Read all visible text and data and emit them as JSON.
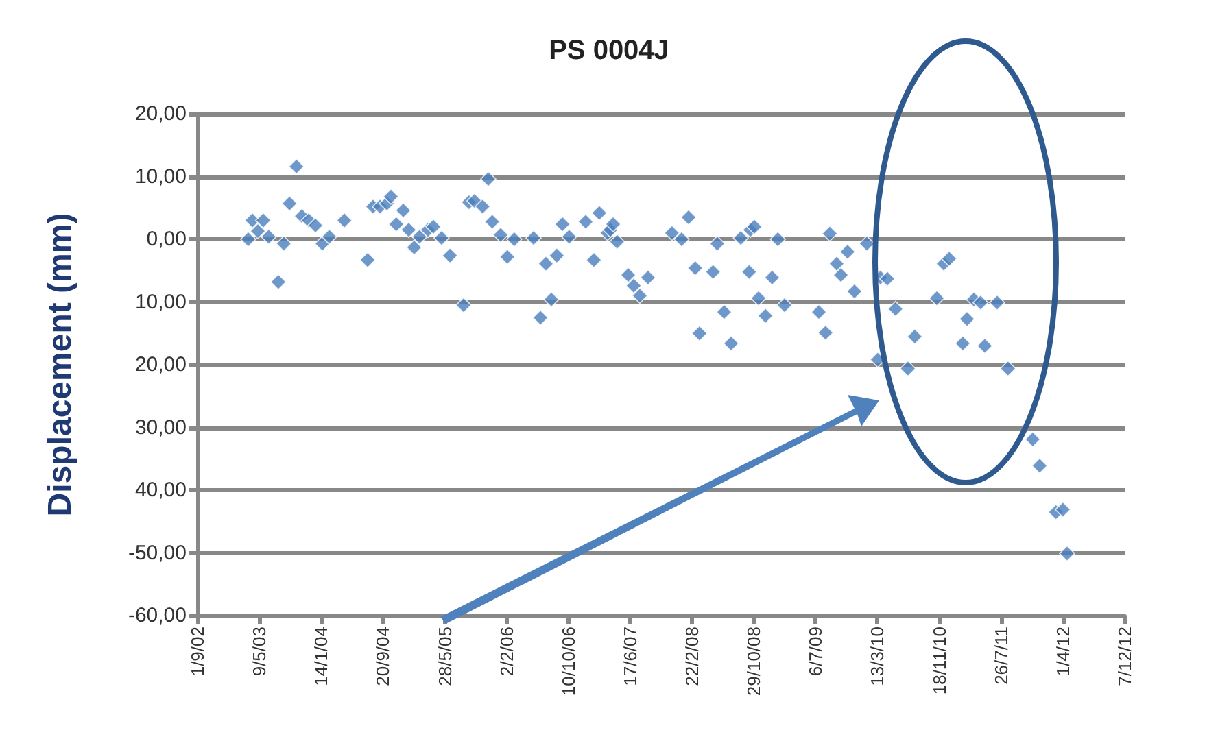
{
  "chart_data": {
    "type": "scatter",
    "title": "PS 0004J",
    "ylabel": "Displacement (mm)",
    "marker": "diamond",
    "grid": "y",
    "xlim": [
      "2002-09-01",
      "2012-12-07"
    ],
    "xticks": [
      {
        "value": "2002-09-01",
        "label": "1/9/02"
      },
      {
        "value": "2003-05-09",
        "label": "9/5/03"
      },
      {
        "value": "2004-01-14",
        "label": "14/1/04"
      },
      {
        "value": "2004-09-20",
        "label": "20/9/04"
      },
      {
        "value": "2005-05-28",
        "label": "28/5/05"
      },
      {
        "value": "2006-02-02",
        "label": "2/2/06"
      },
      {
        "value": "2006-10-10",
        "label": "10/10/06"
      },
      {
        "value": "2007-06-17",
        "label": "17/6/07"
      },
      {
        "value": "2008-02-22",
        "label": "22/2/08"
      },
      {
        "value": "2008-10-29",
        "label": "29/10/08"
      },
      {
        "value": "2009-07-06",
        "label": "6/7/09"
      },
      {
        "value": "2010-03-13",
        "label": "13/3/10"
      },
      {
        "value": "2010-11-18",
        "label": "18/11/10"
      },
      {
        "value": "2011-07-26",
        "label": "26/7/11"
      },
      {
        "value": "2012-04-01",
        "label": "1/4/12"
      },
      {
        "value": "2012-12-07",
        "label": "7/12/12"
      }
    ],
    "ylim": [
      -60,
      20
    ],
    "yticks": [
      {
        "value": 20,
        "label": "20,00"
      },
      {
        "value": 10,
        "label": "10,00"
      },
      {
        "value": 0,
        "label": "0,00"
      },
      {
        "value": -10,
        "label": "10,00"
      },
      {
        "value": -20,
        "label": "20,00"
      },
      {
        "value": -30,
        "label": "30,00"
      },
      {
        "value": -40,
        "label": "40,00"
      },
      {
        "value": -50,
        "label": "-50,00"
      },
      {
        "value": -60,
        "label": "-60,00"
      }
    ],
    "series": [
      {
        "color": "#4a7ebb",
        "x": [
          "2003-03-25",
          "2003-04-11",
          "2003-05-03",
          "2003-05-25",
          "2003-06-16",
          "2003-07-25",
          "2003-08-16",
          "2003-09-08",
          "2003-10-06",
          "2003-10-28",
          "2003-11-25",
          "2003-12-22",
          "2004-01-19",
          "2004-02-16",
          "2004-04-17",
          "2004-07-20",
          "2004-08-11",
          "2004-09-08",
          "2004-10-06",
          "2004-10-22",
          "2004-11-13",
          "2004-12-11",
          "2005-01-02",
          "2005-01-24",
          "2005-02-15",
          "2005-03-21",
          "2005-04-12",
          "2005-05-15",
          "2005-06-18",
          "2005-08-12",
          "2005-09-03",
          "2005-09-25",
          "2005-10-28",
          "2005-11-20",
          "2005-12-06",
          "2006-01-09",
          "2006-02-05",
          "2006-03-05",
          "2006-05-22",
          "2006-06-19",
          "2006-07-11",
          "2006-08-02",
          "2006-08-24",
          "2006-09-16",
          "2006-10-13",
          "2006-12-19",
          "2007-01-21",
          "2007-02-12",
          "2007-03-17",
          "2007-03-29",
          "2007-04-09",
          "2007-04-25",
          "2007-06-09",
          "2007-07-01",
          "2007-07-26",
          "2007-08-28",
          "2007-12-03",
          "2008-01-11",
          "2008-02-08",
          "2008-03-06",
          "2008-03-23",
          "2008-05-17",
          "2008-06-03",
          "2008-07-01",
          "2008-07-29",
          "2008-09-06",
          "2008-10-10",
          "2008-10-15",
          "2008-10-31",
          "2008-11-17",
          "2008-12-15",
          "2009-01-11",
          "2009-02-03",
          "2009-03-02",
          "2009-07-19",
          "2009-08-15",
          "2009-09-01",
          "2009-09-29",
          "2009-10-16",
          "2009-11-12",
          "2009-12-10",
          "2010-01-29",
          "2010-03-14",
          "2010-03-25",
          "2010-04-22",
          "2010-05-25",
          "2010-07-14",
          "2010-08-11",
          "2010-11-08",
          "2010-12-06",
          "2010-12-28",
          "2011-02-21",
          "2011-03-10",
          "2011-04-07",
          "2011-05-04",
          "2011-05-21",
          "2011-07-10",
          "2011-08-23",
          "2011-12-01",
          "2011-12-29",
          "2012-03-04",
          "2012-04-01",
          "2012-04-18"
        ],
        "values": [
          0,
          3,
          1.3,
          3,
          0.4,
          -6.8,
          -0.7,
          5.7,
          11.6,
          3.7,
          3,
          2.2,
          -0.7,
          0.4,
          3,
          -3.3,
          5.2,
          5.2,
          5.7,
          6.8,
          2.4,
          4.6,
          1.5,
          -1.3,
          0.4,
          1.5,
          2,
          0.2,
          -2.6,
          -10.5,
          5.9,
          6.1,
          5.2,
          9.6,
          2.8,
          0.7,
          -2.8,
          0,
          0.2,
          -12.5,
          -3.9,
          -9.6,
          -2.6,
          2.4,
          0.4,
          2.8,
          -3.3,
          4.2,
          1,
          1.5,
          2.4,
          -0.4,
          -5.7,
          -7.4,
          -9,
          -6.1,
          1,
          0,
          3.5,
          -4.6,
          -15,
          -5.2,
          -0.7,
          -11.6,
          -16.6,
          0.2,
          -5.2,
          1.5,
          2,
          -9.4,
          -12.2,
          -6.1,
          0,
          -10.5,
          -11.6,
          -14.9,
          0.9,
          -3.9,
          -5.7,
          -2,
          -8.3,
          -0.7,
          -19.2,
          -6.1,
          -6.3,
          -11.1,
          -20.6,
          -15.5,
          -9.4,
          -3.9,
          -3.1,
          -16.6,
          -12.7,
          -9.6,
          -10.1,
          -17,
          -10.1,
          -20.6,
          -31.9,
          -36.1,
          -43.5,
          -43.1,
          -50.1
        ]
      }
    ]
  }
}
